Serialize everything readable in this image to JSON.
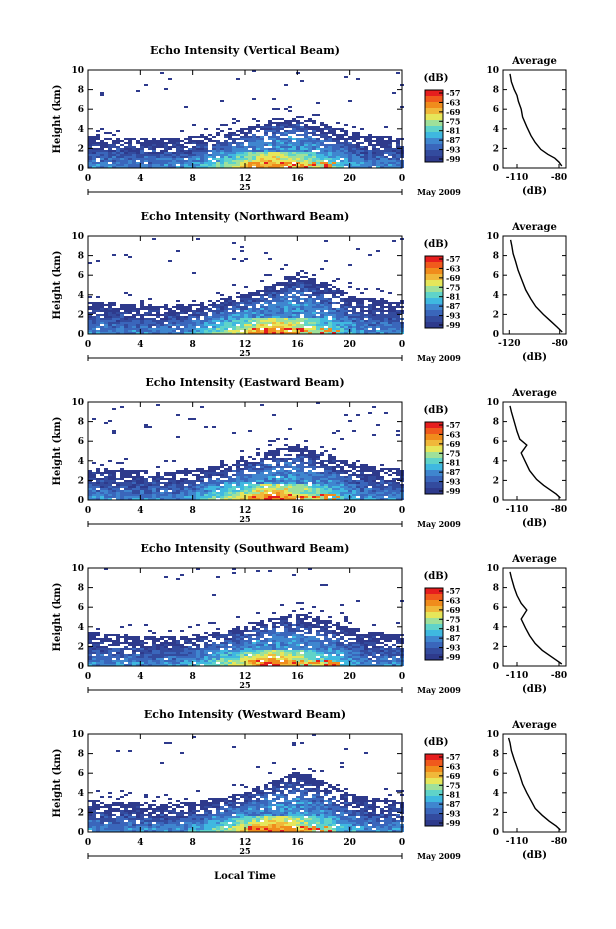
{
  "figure": {
    "month_label": "May 2009",
    "xlabel": "Local Time",
    "date_label": "25",
    "colorbar_unit": "(dB)",
    "colorbar_ticks": [
      "-57",
      "-63",
      "-69",
      "-75",
      "-81",
      "-87",
      "-93",
      "-99"
    ],
    "height_label": "Height (km)",
    "avg_title": "Average",
    "avg_xlabel": "(dB)",
    "colors": {
      "background": "#ffffff",
      "low_echo": "#2e3a8c",
      "mid_echo": "#3fb8e0",
      "high_echo": "#f08c1c",
      "peak_echo": "#e61e1e"
    }
  },
  "chart_data": [
    {
      "type": "heatmap",
      "title": "Echo Intensity (Vertical Beam)",
      "ylabel": "Height (km)",
      "x_ticks": [
        "0",
        "4",
        "8",
        "12",
        "16",
        "20",
        "0"
      ],
      "y_ticks": [
        "0",
        "2",
        "4",
        "6",
        "8",
        "10"
      ],
      "xlim": [
        0,
        24
      ],
      "ylim": [
        0,
        10
      ],
      "colorbar": {
        "unit": "(dB)",
        "ticks": [
          -57,
          -63,
          -69,
          -75,
          -81,
          -87,
          -93,
          -99
        ]
      },
      "echo_top_km": [
        [
          0,
          3.1
        ],
        [
          2,
          3.0
        ],
        [
          4,
          2.9
        ],
        [
          6,
          2.9
        ],
        [
          8,
          3.1
        ],
        [
          10,
          3.4
        ],
        [
          12,
          4.0
        ],
        [
          14,
          4.9
        ],
        [
          16,
          5.3
        ],
        [
          18,
          4.4
        ],
        [
          20,
          3.6
        ],
        [
          22,
          3.2
        ],
        [
          24,
          3.0
        ]
      ],
      "average_profile": {
        "title": "Average",
        "xlabel": "(dB)",
        "x_ticks": [
          "-110",
          "-80"
        ],
        "y_ticks": [
          "0",
          "2",
          "4",
          "6",
          "8",
          "10"
        ],
        "xlim": [
          -120,
          -75
        ],
        "ylim": [
          0,
          10
        ],
        "points": [
          [
            -78,
            0.2
          ],
          [
            -80,
            0.6
          ],
          [
            -83,
            1.0
          ],
          [
            -88,
            1.4
          ],
          [
            -93,
            1.9
          ],
          [
            -97,
            2.6
          ],
          [
            -100,
            3.3
          ],
          [
            -103,
            4.2
          ],
          [
            -106,
            5.2
          ],
          [
            -107,
            6.0
          ],
          [
            -109,
            6.8
          ],
          [
            -110,
            7.4
          ],
          [
            -112,
            8.0
          ],
          [
            -114,
            8.8
          ],
          [
            -115,
            9.6
          ]
        ]
      }
    },
    {
      "type": "heatmap",
      "title": "Echo Intensity (Northward Beam)",
      "ylabel": "Height (km)",
      "x_ticks": [
        "0",
        "4",
        "8",
        "12",
        "16",
        "20",
        "0"
      ],
      "y_ticks": [
        "0",
        "2",
        "4",
        "6",
        "8",
        "10"
      ],
      "xlim": [
        0,
        24
      ],
      "ylim": [
        0,
        10
      ],
      "colorbar": {
        "unit": "(dB)",
        "ticks": [
          -57,
          -63,
          -69,
          -75,
          -81,
          -87,
          -93,
          -99
        ]
      },
      "echo_top_km": [
        [
          0,
          3.2
        ],
        [
          2,
          3.1
        ],
        [
          4,
          2.9
        ],
        [
          6,
          2.8
        ],
        [
          8,
          3.0
        ],
        [
          10,
          3.5
        ],
        [
          12,
          4.1
        ],
        [
          14,
          5.0
        ],
        [
          16,
          6.2
        ],
        [
          18,
          5.2
        ],
        [
          20,
          3.9
        ],
        [
          22,
          3.4
        ],
        [
          24,
          3.1
        ]
      ],
      "average_profile": {
        "title": "Average",
        "xlabel": "(dB)",
        "x_ticks": [
          "-120",
          "-80"
        ],
        "y_ticks": [
          "0",
          "2",
          "4",
          "6",
          "8",
          "10"
        ],
        "xlim": [
          -125,
          -75
        ],
        "ylim": [
          0,
          10
        ],
        "points": [
          [
            -78,
            0.2
          ],
          [
            -82,
            0.7
          ],
          [
            -87,
            1.3
          ],
          [
            -93,
            2.0
          ],
          [
            -99,
            2.8
          ],
          [
            -103,
            3.6
          ],
          [
            -107,
            4.5
          ],
          [
            -110,
            5.5
          ],
          [
            -113,
            6.5
          ],
          [
            -115,
            7.4
          ],
          [
            -117,
            8.2
          ],
          [
            -118,
            9.0
          ],
          [
            -119,
            9.6
          ]
        ]
      }
    },
    {
      "type": "heatmap",
      "title": "Echo Intensity (Eastward Beam)",
      "ylabel": "Height (km)",
      "x_ticks": [
        "0",
        "4",
        "8",
        "12",
        "16",
        "20",
        "0"
      ],
      "y_ticks": [
        "0",
        "2",
        "4",
        "6",
        "8",
        "10"
      ],
      "xlim": [
        0,
        24
      ],
      "ylim": [
        0,
        10
      ],
      "colorbar": {
        "unit": "(dB)",
        "ticks": [
          -57,
          -63,
          -69,
          -75,
          -81,
          -87,
          -93,
          -99
        ]
      },
      "echo_top_km": [
        [
          0,
          3.2
        ],
        [
          2,
          3.0
        ],
        [
          4,
          2.9
        ],
        [
          6,
          2.8
        ],
        [
          8,
          3.0
        ],
        [
          10,
          3.5
        ],
        [
          12,
          4.2
        ],
        [
          14,
          5.0
        ],
        [
          16,
          5.6
        ],
        [
          18,
          4.7
        ],
        [
          20,
          3.7
        ],
        [
          22,
          3.3
        ],
        [
          24,
          3.0
        ]
      ],
      "average_profile": {
        "title": "Average",
        "xlabel": "(dB)",
        "x_ticks": [
          "-110",
          "-80"
        ],
        "y_ticks": [
          "0",
          "2",
          "4",
          "6",
          "8",
          "10"
        ],
        "xlim": [
          -120,
          -75
        ],
        "ylim": [
          0,
          10
        ],
        "points": [
          [
            -79,
            0.2
          ],
          [
            -82,
            0.6
          ],
          [
            -86,
            1.0
          ],
          [
            -91,
            1.5
          ],
          [
            -96,
            2.1
          ],
          [
            -101,
            3.0
          ],
          [
            -104,
            3.9
          ],
          [
            -107,
            4.8
          ],
          [
            -103,
            5.6
          ],
          [
            -108,
            6.2
          ],
          [
            -110,
            7.0
          ],
          [
            -112,
            8.0
          ],
          [
            -114,
            9.0
          ],
          [
            -115,
            9.6
          ]
        ]
      }
    },
    {
      "type": "heatmap",
      "title": "Echo Intensity (Southward Beam)",
      "ylabel": "Height (km)",
      "x_ticks": [
        "0",
        "4",
        "8",
        "12",
        "16",
        "20",
        "0"
      ],
      "y_ticks": [
        "0",
        "2",
        "4",
        "6",
        "8",
        "10"
      ],
      "xlim": [
        0,
        24
      ],
      "ylim": [
        0,
        10
      ],
      "colorbar": {
        "unit": "(dB)",
        "ticks": [
          -57,
          -63,
          -69,
          -75,
          -81,
          -87,
          -93,
          -99
        ]
      },
      "echo_top_km": [
        [
          0,
          3.3
        ],
        [
          2,
          3.1
        ],
        [
          4,
          3.0
        ],
        [
          6,
          2.9
        ],
        [
          8,
          3.1
        ],
        [
          10,
          3.5
        ],
        [
          12,
          4.1
        ],
        [
          14,
          4.8
        ],
        [
          16,
          5.3
        ],
        [
          18,
          4.8
        ],
        [
          20,
          3.8
        ],
        [
          22,
          3.3
        ],
        [
          24,
          3.1
        ]
      ],
      "average_profile": {
        "title": "Average",
        "xlabel": "(dB)",
        "x_ticks": [
          "-110",
          "-80"
        ],
        "y_ticks": [
          "0",
          "2",
          "4",
          "6",
          "8",
          "10"
        ],
        "xlim": [
          -120,
          -75
        ],
        "ylim": [
          0,
          10
        ],
        "points": [
          [
            -78,
            0.2
          ],
          [
            -82,
            0.6
          ],
          [
            -86,
            1.0
          ],
          [
            -92,
            1.6
          ],
          [
            -97,
            2.3
          ],
          [
            -101,
            3.1
          ],
          [
            -104,
            3.9
          ],
          [
            -107,
            4.8
          ],
          [
            -103,
            5.7
          ],
          [
            -107,
            6.4
          ],
          [
            -110,
            7.2
          ],
          [
            -112,
            8.0
          ],
          [
            -114,
            9.0
          ],
          [
            -115,
            9.6
          ]
        ]
      }
    },
    {
      "type": "heatmap",
      "title": "Echo Intensity (Westward Beam)",
      "ylabel": "Height (km)",
      "x_ticks": [
        "0",
        "4",
        "8",
        "12",
        "16",
        "20",
        "0"
      ],
      "y_ticks": [
        "0",
        "2",
        "4",
        "6",
        "8",
        "10"
      ],
      "xlim": [
        0,
        24
      ],
      "ylim": [
        0,
        10
      ],
      "colorbar": {
        "unit": "(dB)",
        "ticks": [
          -57,
          -63,
          -69,
          -75,
          -81,
          -87,
          -93,
          -99
        ]
      },
      "echo_top_km": [
        [
          0,
          3.1
        ],
        [
          2,
          3.0
        ],
        [
          4,
          2.9
        ],
        [
          6,
          2.8
        ],
        [
          8,
          3.0
        ],
        [
          10,
          3.4
        ],
        [
          12,
          4.1
        ],
        [
          14,
          5.1
        ],
        [
          16,
          6.1
        ],
        [
          18,
          5.0
        ],
        [
          20,
          3.8
        ],
        [
          22,
          3.3
        ],
        [
          24,
          3.0
        ]
      ],
      "average_profile": {
        "title": "Average",
        "xlabel": "(dB)",
        "x_ticks": [
          "-110",
          "-80"
        ],
        "y_ticks": [
          "0",
          "2",
          "4",
          "6",
          "8",
          "10"
        ],
        "xlim": [
          -120,
          -75
        ],
        "ylim": [
          0,
          10
        ],
        "points": [
          [
            -79,
            0.2
          ],
          [
            -82,
            0.6
          ],
          [
            -87,
            1.1
          ],
          [
            -92,
            1.7
          ],
          [
            -97,
            2.4
          ],
          [
            -100,
            3.2
          ],
          [
            -103,
            4.0
          ],
          [
            -106,
            4.9
          ],
          [
            -108,
            5.8
          ],
          [
            -110,
            6.6
          ],
          [
            -112,
            7.4
          ],
          [
            -114,
            8.3
          ],
          [
            -115,
            9.1
          ],
          [
            -116,
            9.6
          ]
        ]
      }
    }
  ]
}
